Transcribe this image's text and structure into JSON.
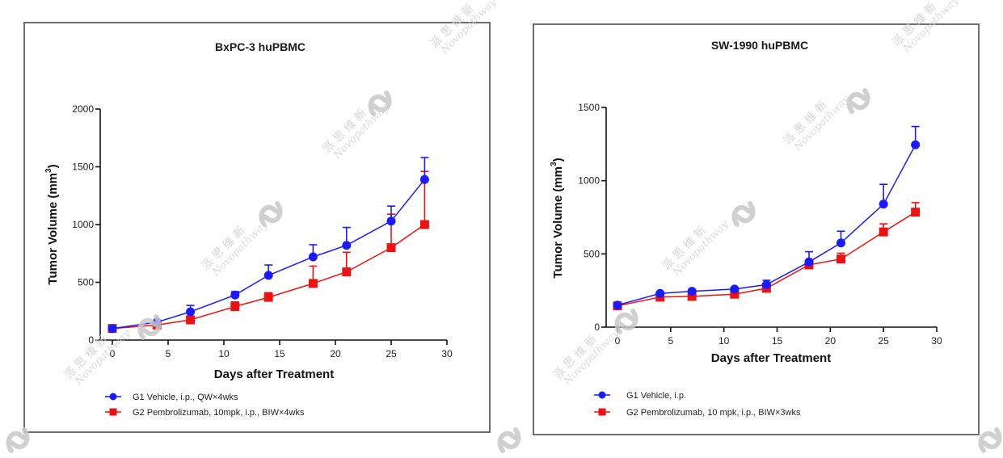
{
  "watermark": {
    "cn": "派 思 维 新",
    "en": "Novopathway"
  },
  "chart_data": [
    {
      "type": "line",
      "title": "BxPC-3 huPBMC",
      "xlabel": "Days after Treatment",
      "ylabel": "Tumor Volume (mm",
      "ylabel_sup": "3",
      "ylabel_close": ")",
      "xlim": [
        0,
        30
      ],
      "ylim": [
        0,
        2000
      ],
      "xticks": [
        0,
        5,
        10,
        15,
        20,
        25,
        30
      ],
      "yticks": [
        0,
        500,
        1000,
        1500,
        2000
      ],
      "grid": false,
      "legend_position": "bottom-left",
      "x": [
        0,
        4,
        7,
        11,
        14,
        18,
        21,
        25,
        28
      ],
      "series": [
        {
          "name": "G1 Vehicle, i.p., QW×4wks",
          "color": "#1a1aff",
          "marker": "circle",
          "values": [
            100,
            155,
            245,
            390,
            560,
            720,
            820,
            1030,
            1390
          ],
          "error_upper": [
            115,
            170,
            300,
            420,
            650,
            825,
            975,
            1160,
            1580
          ]
        },
        {
          "name": "G2 Pembrolizumab, 10mpk, i.p., BIW×4wks",
          "color": "#ee1111",
          "marker": "square",
          "values": [
            100,
            130,
            175,
            290,
            370,
            490,
            590,
            800,
            1000
          ],
          "error_upper": [
            110,
            140,
            185,
            330,
            410,
            640,
            760,
            1090,
            1460
          ]
        }
      ]
    },
    {
      "type": "line",
      "title": "SW-1990 huPBMC",
      "xlabel": "Days after Treatment",
      "ylabel": "Tumor Volume (mm",
      "ylabel_sup": "3",
      "ylabel_close": ")",
      "xlim": [
        0,
        30
      ],
      "ylim": [
        0,
        1500
      ],
      "xticks": [
        0,
        5,
        10,
        15,
        20,
        25,
        30
      ],
      "yticks": [
        0,
        500,
        1000,
        1500
      ],
      "grid": false,
      "legend_position": "bottom-left",
      "x": [
        0,
        4,
        7,
        11,
        14,
        18,
        21,
        25,
        28
      ],
      "series": [
        {
          "name": "G1 Vehicle, i.p.",
          "color": "#1a1aff",
          "marker": "circle",
          "values": [
            150,
            230,
            245,
            260,
            290,
            445,
            575,
            840,
            1245
          ],
          "error_upper": [
            160,
            240,
            255,
            270,
            320,
            515,
            655,
            975,
            1370
          ]
        },
        {
          "name": "G2 Pembrolizumab, 10 mpk, i.p., BIW×3wks",
          "color": "#ee1111",
          "marker": "square",
          "values": [
            145,
            205,
            210,
            225,
            265,
            425,
            465,
            650,
            785
          ],
          "error_upper": [
            155,
            215,
            220,
            235,
            275,
            435,
            505,
            705,
            850
          ]
        }
      ]
    }
  ]
}
